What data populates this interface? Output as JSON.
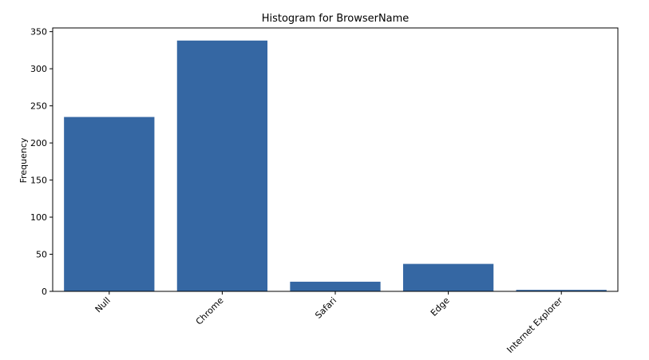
{
  "chart_data": {
    "type": "bar",
    "title": "Histogram for BrowserName",
    "xlabel": "",
    "ylabel": "Frequency",
    "categories": [
      "Null",
      "Chrome",
      "Safari",
      "Edge",
      "Internet Explorer"
    ],
    "values": [
      235,
      338,
      13,
      37,
      2
    ],
    "ylim": [
      0,
      355
    ],
    "yticks": [
      0,
      50,
      100,
      150,
      200,
      250,
      300,
      350
    ],
    "bar_color": "#3567a3",
    "grid": false
  }
}
